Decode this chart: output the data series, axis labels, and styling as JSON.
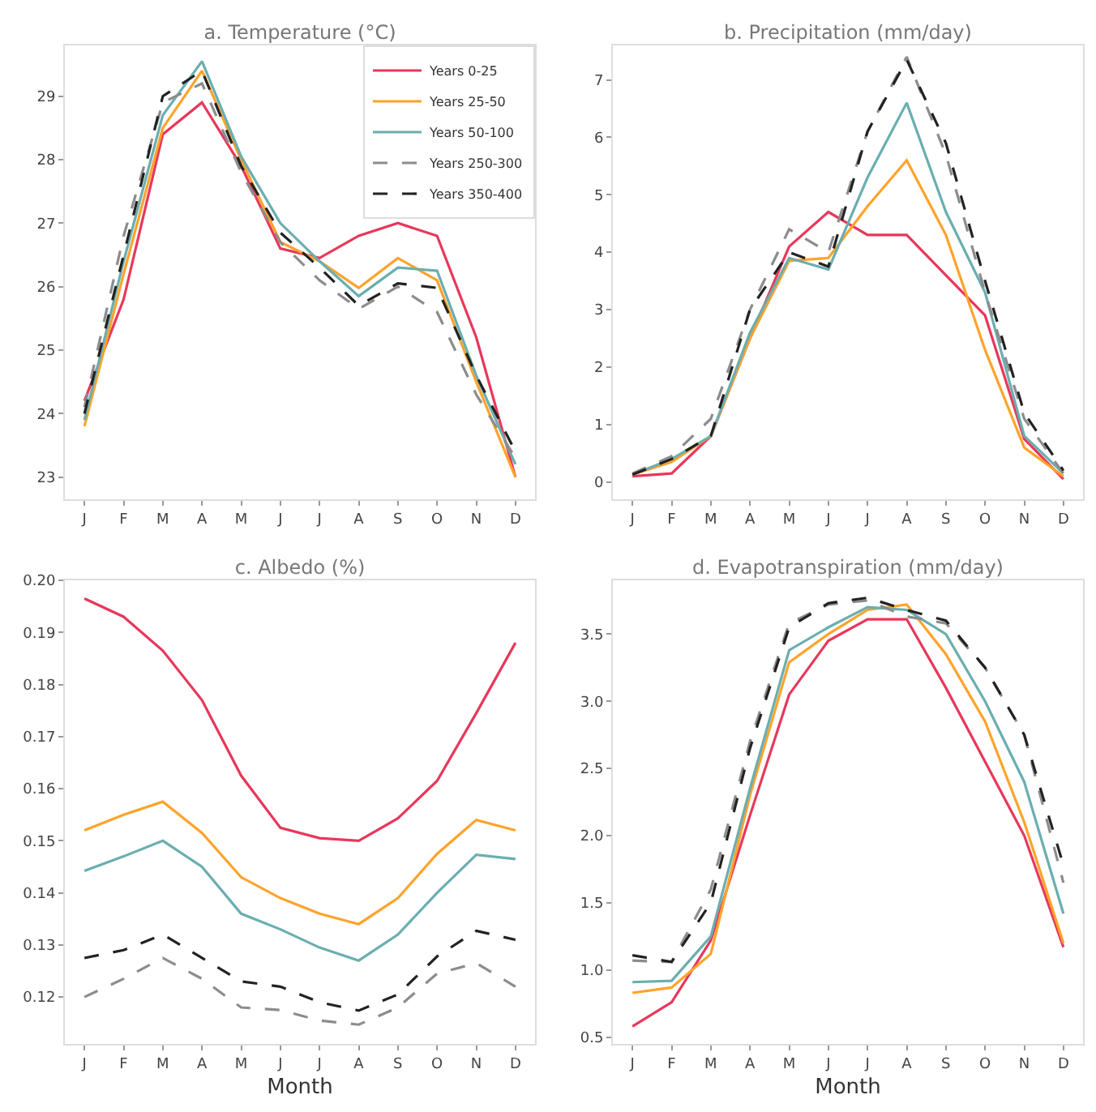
{
  "chart_data": [
    {
      "type": "line",
      "title": "a. Temperature (°C)",
      "categories": [
        "J",
        "F",
        "M",
        "A",
        "M",
        "J",
        "J",
        "A",
        "S",
        "O",
        "N",
        "D"
      ],
      "ylim": [
        22.65,
        29.8
      ],
      "yticks": [
        23,
        24,
        25,
        26,
        27,
        28,
        29
      ],
      "grid": false,
      "legend": "top right",
      "series": [
        {
          "name": "Years 0-25",
          "color": "#e8375a",
          "line_style": "solid",
          "values": [
            24.2,
            25.8,
            28.4,
            28.9,
            27.9,
            26.6,
            26.45,
            26.8,
            27.0,
            26.8,
            25.2,
            23.0
          ]
        },
        {
          "name": "Years 25-50",
          "color": "#ffa32a",
          "line_style": "solid",
          "values": [
            23.8,
            26.2,
            28.5,
            29.4,
            28.0,
            26.7,
            26.4,
            25.98,
            26.45,
            26.1,
            24.5,
            23.0
          ]
        },
        {
          "name": "Years 50-100",
          "color": "#6aaeb0",
          "line_style": "solid",
          "values": [
            23.9,
            26.4,
            28.7,
            29.55,
            28.05,
            27.0,
            26.4,
            25.85,
            26.3,
            26.25,
            24.6,
            23.2
          ]
        },
        {
          "name": "Years 250-300",
          "color": "#8c8c8c",
          "line_style": "dashed",
          "values": [
            24.1,
            26.8,
            28.9,
            29.2,
            27.8,
            26.7,
            26.1,
            25.65,
            26.0,
            25.6,
            24.3,
            23.3
          ]
        },
        {
          "name": "Years 350-400",
          "color": "#222222",
          "line_style": "dashed",
          "values": [
            24.0,
            26.5,
            29.0,
            29.4,
            27.9,
            26.85,
            26.3,
            25.7,
            26.05,
            25.98,
            24.6,
            23.4
          ]
        }
      ]
    },
    {
      "type": "line",
      "title": "b. Precipitation (mm/day)",
      "categories": [
        "J",
        "F",
        "M",
        "A",
        "M",
        "J",
        "J",
        "A",
        "S",
        "O",
        "N",
        "D"
      ],
      "ylim": [
        -0.3,
        7.6
      ],
      "yticks": [
        0,
        1,
        2,
        3,
        4,
        5,
        6,
        7
      ],
      "grid": false,
      "series": [
        {
          "color": "#e8375a",
          "line_style": "solid",
          "values": [
            0.1,
            0.15,
            0.8,
            2.5,
            4.1,
            4.7,
            4.3,
            4.3,
            3.6,
            2.9,
            0.75,
            0.05
          ]
        },
        {
          "color": "#ffa32a",
          "line_style": "solid",
          "values": [
            0.13,
            0.35,
            0.8,
            2.5,
            3.85,
            3.9,
            4.8,
            5.6,
            4.3,
            2.3,
            0.6,
            0.1
          ]
        },
        {
          "color": "#6aaeb0",
          "line_style": "solid",
          "values": [
            0.13,
            0.4,
            0.8,
            2.6,
            3.9,
            3.7,
            5.3,
            6.6,
            4.7,
            3.3,
            0.8,
            0.15
          ]
        },
        {
          "color": "#8c8c8c",
          "line_style": "dashed",
          "values": [
            0.15,
            0.45,
            1.1,
            3.0,
            4.4,
            4.0,
            6.1,
            7.4,
            5.7,
            3.3,
            1.1,
            0.15
          ]
        },
        {
          "color": "#222222",
          "line_style": "dashed",
          "values": [
            0.13,
            0.4,
            0.8,
            3.0,
            4.0,
            3.75,
            6.1,
            7.35,
            5.9,
            3.5,
            1.2,
            0.2
          ]
        }
      ]
    },
    {
      "type": "line",
      "title": "c. Albedo (%)",
      "xlabel": "Month",
      "categories": [
        "J",
        "F",
        "M",
        "A",
        "M",
        "J",
        "J",
        "A",
        "S",
        "O",
        "N",
        "D"
      ],
      "ylim": [
        0.111,
        0.2
      ],
      "yticks": [
        0.12,
        0.13,
        0.14,
        0.15,
        0.16,
        0.17,
        0.18,
        0.19,
        {
          "value": 0.2,
          "label": "0.20"
        }
      ],
      "grid": false,
      "series": [
        {
          "color": "#e8375a",
          "line_style": "solid",
          "values": [
            0.1965,
            0.193,
            0.1865,
            0.177,
            0.1625,
            0.1525,
            0.1505,
            0.15,
            0.1543,
            0.1615,
            0.1745,
            0.188
          ]
        },
        {
          "color": "#ffa32a",
          "line_style": "solid",
          "values": [
            0.152,
            0.155,
            0.1575,
            0.1515,
            0.143,
            0.139,
            0.136,
            0.134,
            0.139,
            0.1475,
            0.154,
            0.152
          ]
        },
        {
          "color": "#6aaeb0",
          "line_style": "solid",
          "values": [
            0.1442,
            0.147,
            0.15,
            0.145,
            0.136,
            0.133,
            0.1295,
            0.127,
            0.132,
            0.14,
            0.1473,
            0.1465
          ]
        },
        {
          "color": "#8c8c8c",
          "line_style": "dashed",
          "values": [
            0.12,
            0.1235,
            0.1275,
            0.1235,
            0.118,
            0.1175,
            0.1155,
            0.1147,
            0.118,
            0.1245,
            0.1265,
            0.122
          ]
        },
        {
          "color": "#222222",
          "line_style": "dashed",
          "values": [
            0.1275,
            0.129,
            0.132,
            0.1275,
            0.123,
            0.122,
            0.119,
            0.1174,
            0.1205,
            0.1278,
            0.1327,
            0.131
          ]
        }
      ]
    },
    {
      "type": "line",
      "title": "d. Evapotranspiration (mm/day)",
      "xlabel": "Month",
      "categories": [
        "J",
        "F",
        "M",
        "A",
        "M",
        "J",
        "J",
        "A",
        "S",
        "O",
        "N",
        "D"
      ],
      "ylim": [
        0.45,
        3.9
      ],
      "yticks": [
        0.5,
        {
          "value": 1,
          "label": "1.0"
        },
        1.5,
        {
          "value": 2,
          "label": "2.0"
        },
        2.5,
        {
          "value": 3,
          "label": "3.0"
        },
        3.5
      ],
      "grid": false,
      "series": [
        {
          "color": "#e8375a",
          "line_style": "solid",
          "values": [
            0.58,
            0.76,
            1.22,
            2.15,
            3.05,
            3.45,
            3.61,
            3.61,
            3.1,
            2.55,
            2.0,
            1.17
          ]
        },
        {
          "color": "#ffa32a",
          "line_style": "solid",
          "values": [
            0.83,
            0.87,
            1.12,
            2.3,
            3.29,
            3.5,
            3.68,
            3.72,
            3.35,
            2.85,
            2.1,
            1.2
          ]
        },
        {
          "color": "#6aaeb0",
          "line_style": "solid",
          "values": [
            0.91,
            0.92,
            1.25,
            2.35,
            3.38,
            3.55,
            3.7,
            3.68,
            3.5,
            3.0,
            2.4,
            1.42
          ]
        },
        {
          "color": "#8c8c8c",
          "line_style": "dashed",
          "values": [
            1.07,
            1.06,
            1.6,
            2.7,
            3.58,
            3.72,
            3.75,
            3.63,
            3.58,
            3.25,
            2.75,
            1.65
          ]
        },
        {
          "color": "#222222",
          "line_style": "dashed",
          "values": [
            1.11,
            1.06,
            1.5,
            2.65,
            3.55,
            3.73,
            3.77,
            3.68,
            3.6,
            3.25,
            2.75,
            1.78
          ]
        }
      ]
    }
  ]
}
